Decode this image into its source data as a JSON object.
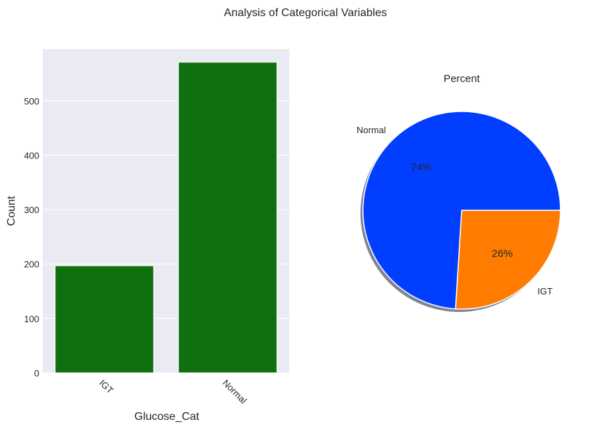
{
  "figure": {
    "suptitle": "Analysis of Categorical Variables"
  },
  "chart_data": [
    {
      "type": "bar",
      "categories": [
        "IGT",
        "Normal"
      ],
      "values": [
        197,
        571
      ],
      "title": "",
      "xlabel": "Glucose_Cat",
      "ylabel": "Count",
      "ylim": [
        0,
        595
      ],
      "yticks": [
        0,
        100,
        200,
        300,
        400,
        500
      ],
      "xtick_rotation": "-45",
      "bar_color": "#107010",
      "background_color": "#EAEAF2",
      "grid": true
    },
    {
      "type": "pie",
      "title": "Percent",
      "labels": [
        "IGT",
        "Normal"
      ],
      "values": [
        26,
        74
      ],
      "pct_labels": [
        "26%",
        "74%"
      ],
      "colors": [
        "#FF7C00",
        "#023EFF"
      ],
      "shadow": true,
      "start_angle": 0
    }
  ]
}
